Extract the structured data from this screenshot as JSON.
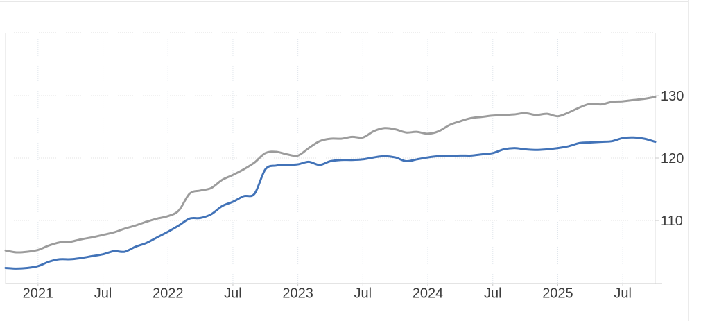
{
  "page": {
    "background_color": "#ffffff",
    "card_border_color": "#e7e7e7"
  },
  "chart_data": {
    "type": "line",
    "title": "",
    "xlabel": "",
    "ylabel": "",
    "legend": "none",
    "grid": "dotted",
    "x_unit": "month",
    "x_start": "2020-10",
    "x_end": "2025-10",
    "ylim": [
      99.9,
      140.1
    ],
    "y_ticks": [
      {
        "value": 130,
        "label": "130"
      },
      {
        "value": 120,
        "label": "120"
      },
      {
        "value": 110,
        "label": "110"
      }
    ],
    "x_ticks": [
      {
        "month_index": 3,
        "label": "2021"
      },
      {
        "month_index": 9,
        "label": "Jul"
      },
      {
        "month_index": 15,
        "label": "2022"
      },
      {
        "month_index": 21,
        "label": "Jul"
      },
      {
        "month_index": 27,
        "label": "2023"
      },
      {
        "month_index": 33,
        "label": "Jul"
      },
      {
        "month_index": 39,
        "label": "2024"
      },
      {
        "month_index": 45,
        "label": "Jul"
      },
      {
        "month_index": 51,
        "label": "2025"
      },
      {
        "month_index": 57,
        "label": "Jul"
      }
    ],
    "colors": {
      "gray_line": "#9c9c9c",
      "blue_line": "#4273b8",
      "h_gridline": "#e3e3e3",
      "v_gridline": "#dfe5ec",
      "frame": "#dedede",
      "axis_bottom": "#c9c9c9",
      "tick_label": "#3c3c3c"
    },
    "series": [
      {
        "name": "gray",
        "color": "#9c9c9c",
        "values": [
          105.2,
          104.9,
          105.0,
          105.3,
          106.0,
          106.5,
          106.6,
          107.0,
          107.3,
          107.7,
          108.1,
          108.7,
          109.2,
          109.8,
          110.3,
          110.7,
          111.6,
          114.3,
          114.8,
          115.2,
          116.5,
          117.3,
          118.2,
          119.3,
          120.8,
          121.0,
          120.6,
          120.4,
          121.6,
          122.7,
          123.1,
          123.1,
          123.4,
          123.3,
          124.3,
          124.8,
          124.6,
          124.1,
          124.2,
          123.9,
          124.3,
          125.3,
          125.9,
          126.4,
          126.6,
          126.8,
          126.9,
          127.0,
          127.2,
          126.9,
          127.1,
          126.7,
          127.3,
          128.1,
          128.7,
          128.6,
          129.0,
          129.1,
          129.3,
          129.5,
          129.8
        ]
      },
      {
        "name": "blue",
        "color": "#4273b8",
        "values": [
          102.4,
          102.3,
          102.4,
          102.7,
          103.4,
          103.8,
          103.8,
          104.0,
          104.3,
          104.6,
          105.1,
          105.0,
          105.8,
          106.4,
          107.3,
          108.2,
          109.2,
          110.3,
          110.4,
          111.0,
          112.3,
          113.0,
          113.9,
          114.3,
          118.2,
          118.8,
          118.9,
          119.0,
          119.4,
          118.9,
          119.5,
          119.7,
          119.7,
          119.8,
          120.1,
          120.3,
          120.1,
          119.5,
          119.8,
          120.1,
          120.3,
          120.3,
          120.4,
          120.4,
          120.6,
          120.8,
          121.4,
          121.6,
          121.4,
          121.3,
          121.4,
          121.6,
          121.9,
          122.4,
          122.5,
          122.6,
          122.7,
          123.2,
          123.3,
          123.1,
          122.6
        ]
      }
    ]
  }
}
